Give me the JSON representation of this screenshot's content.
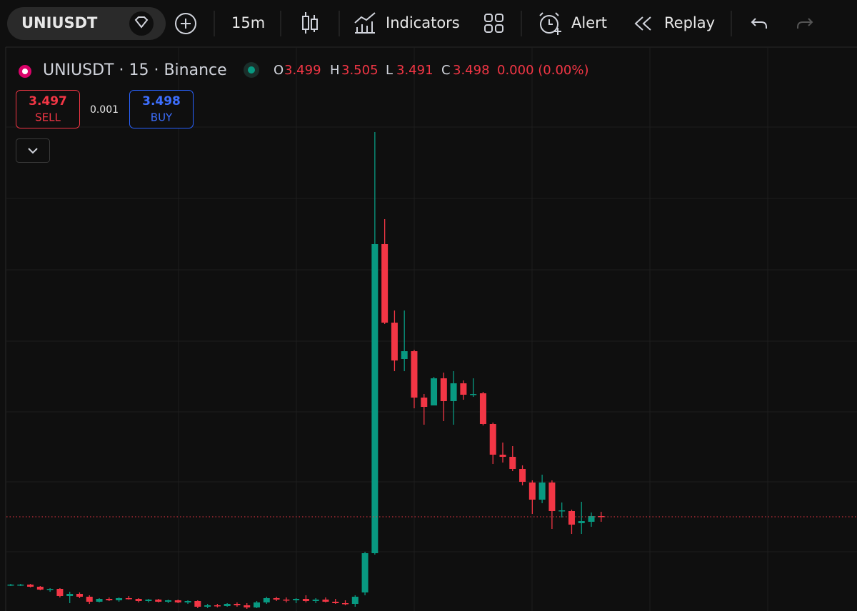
{
  "toolbar": {
    "symbol": "UNIUSDT",
    "interval": "15m",
    "indicators": "Indicators",
    "alert": "Alert",
    "replay": "Replay"
  },
  "header": {
    "title": "UNIUSDT · 15 · Binance",
    "o_label": "O",
    "o": "3.499",
    "h_label": "H",
    "h": "3.505",
    "l_label": "L",
    "l": "3.491",
    "c_label": "C",
    "c": "3.498",
    "change": "0.000 (0.00%)"
  },
  "trade": {
    "sell_price": "3.497",
    "sell": "SELL",
    "spread": "0.001",
    "buy_price": "3.498",
    "buy": "BUY"
  },
  "chart_data": {
    "type": "candlestick",
    "up_color": "#089981",
    "down_color": "#f23645",
    "ylim": [
      3.366,
      4.157
    ],
    "open": [
      3.403,
      3.403,
      3.403,
      3.4,
      3.396,
      3.397,
      3.387,
      3.39,
      3.386,
      3.379,
      3.383,
      3.381,
      3.384,
      3.383,
      3.38,
      3.382,
      3.379,
      3.381,
      3.378,
      3.38,
      3.372,
      3.374,
      3.373,
      3.376,
      3.374,
      3.371,
      3.378,
      3.384,
      3.382,
      3.381,
      3.383,
      3.38,
      3.382,
      3.379,
      3.377,
      3.376,
      3.392,
      3.447,
      3.88,
      3.77,
      3.719,
      3.73,
      3.665,
      3.654,
      3.692,
      3.66,
      3.685,
      3.669,
      3.671,
      3.628,
      3.585,
      3.582,
      3.565,
      3.546,
      3.522,
      3.546,
      3.506,
      3.506,
      3.489,
      3.491,
      3.499
    ],
    "high": [
      3.404,
      3.404,
      3.404,
      3.401,
      3.398,
      3.398,
      3.393,
      3.392,
      3.388,
      3.384,
      3.385,
      3.385,
      3.387,
      3.384,
      3.383,
      3.383,
      3.382,
      3.382,
      3.381,
      3.381,
      3.376,
      3.376,
      3.377,
      3.378,
      3.377,
      3.38,
      3.386,
      3.386,
      3.385,
      3.384,
      3.388,
      3.384,
      3.385,
      3.383,
      3.381,
      3.388,
      3.449,
      4.037,
      3.915,
      3.787,
      3.787,
      3.732,
      3.67,
      3.694,
      3.7,
      3.702,
      3.689,
      3.692,
      3.673,
      3.63,
      3.602,
      3.597,
      3.57,
      3.549,
      3.557,
      3.549,
      3.518,
      3.508,
      3.519,
      3.504,
      3.505
    ],
    "low": [
      3.401,
      3.401,
      3.399,
      3.395,
      3.393,
      3.385,
      3.377,
      3.384,
      3.376,
      3.378,
      3.38,
      3.379,
      3.382,
      3.378,
      3.378,
      3.378,
      3.377,
      3.377,
      3.376,
      3.37,
      3.37,
      3.371,
      3.372,
      3.372,
      3.369,
      3.37,
      3.376,
      3.38,
      3.378,
      3.377,
      3.378,
      3.377,
      3.378,
      3.376,
      3.374,
      3.372,
      3.388,
      3.445,
      3.768,
      3.702,
      3.702,
      3.65,
      3.627,
      3.654,
      3.632,
      3.627,
      3.662,
      3.666,
      3.626,
      3.572,
      3.574,
      3.562,
      3.542,
      3.502,
      3.517,
      3.481,
      3.497,
      3.474,
      3.474,
      3.484,
      3.491
    ],
    "close": [
      3.403,
      3.403,
      3.4,
      3.396,
      3.397,
      3.387,
      3.39,
      3.386,
      3.379,
      3.383,
      3.381,
      3.384,
      3.383,
      3.38,
      3.382,
      3.379,
      3.381,
      3.378,
      3.38,
      3.372,
      3.374,
      3.373,
      3.376,
      3.374,
      3.371,
      3.378,
      3.384,
      3.382,
      3.381,
      3.383,
      3.38,
      3.382,
      3.379,
      3.377,
      3.376,
      3.386,
      3.447,
      3.88,
      3.77,
      3.717,
      3.73,
      3.665,
      3.652,
      3.692,
      3.66,
      3.685,
      3.669,
      3.67,
      3.628,
      3.585,
      3.582,
      3.565,
      3.547,
      3.522,
      3.546,
      3.506,
      3.507,
      3.487,
      3.492,
      3.499,
      3.498
    ]
  }
}
